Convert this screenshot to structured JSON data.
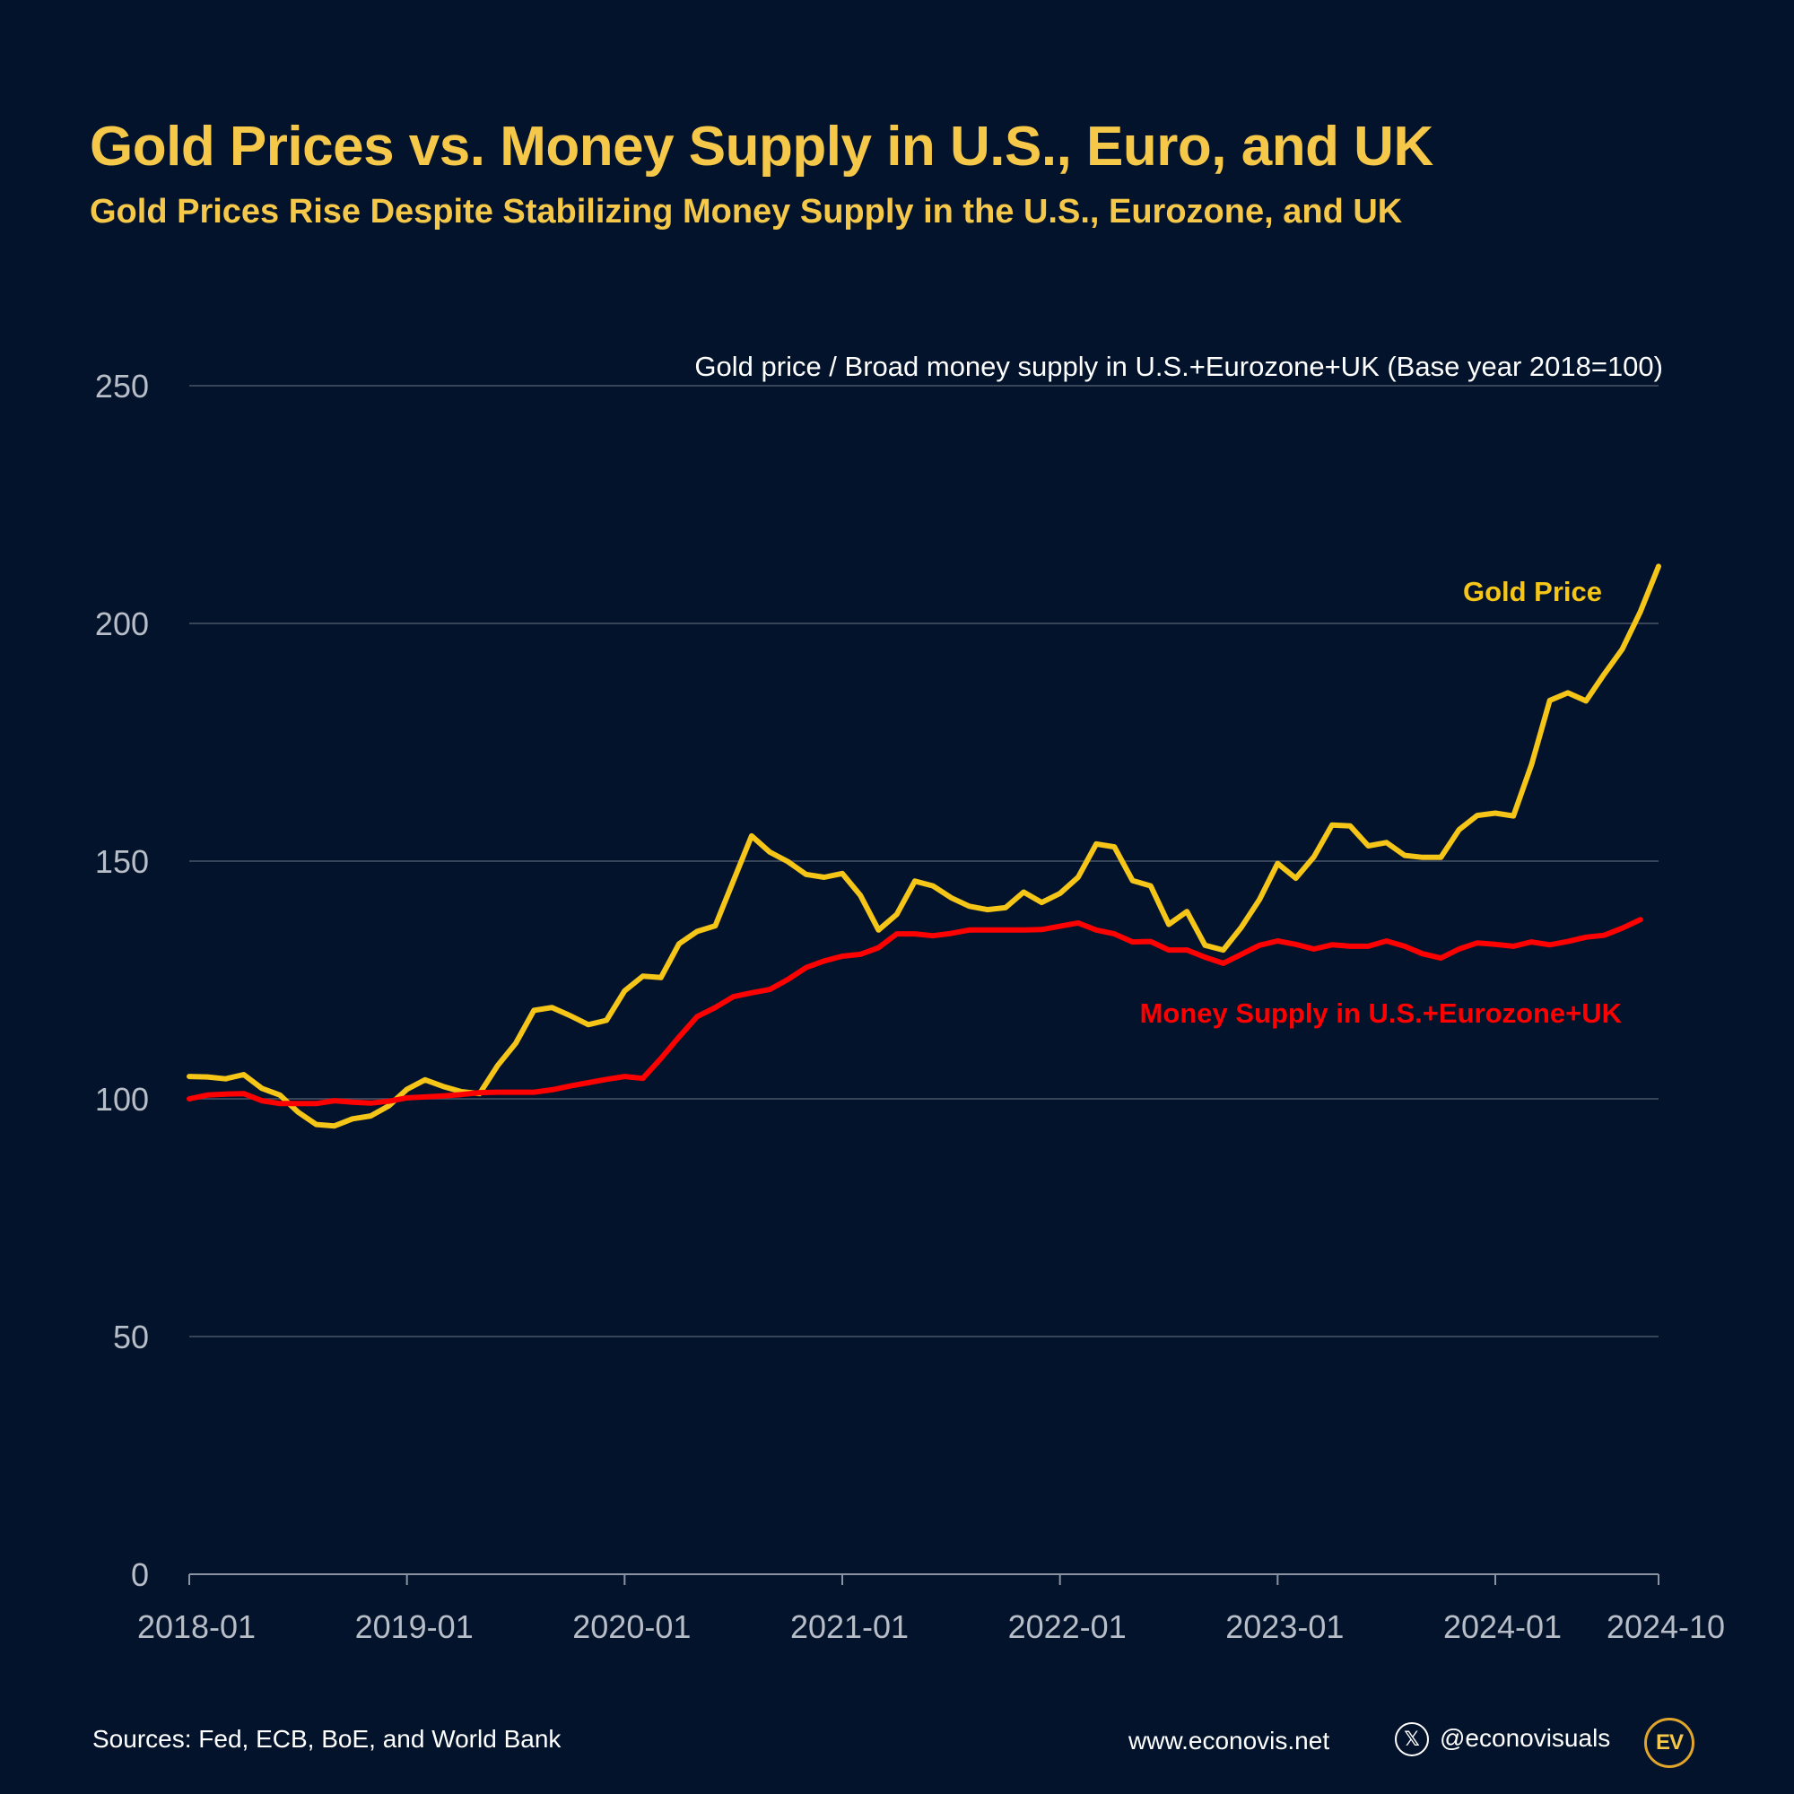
{
  "header": {
    "title": "Gold Prices vs. Money Supply in U.S., Euro, and UK",
    "subtitle": "Gold Prices Rise Despite Stabilizing Money Supply in the U.S., Eurozone, and UK"
  },
  "footer": {
    "sources": "Sources: Fed, ECB, BoE, and World Bank",
    "website": "www.econovis.net",
    "handle": "@econovisuals",
    "x_icon": "x-logo-icon",
    "logo_text": "EV"
  },
  "colors": {
    "background": "#03132b",
    "gold": "#f5c518",
    "money": "#ff0000",
    "title": "#f5c84a",
    "grid": "#4a5566",
    "tick_text": "#b8bec8"
  },
  "chart_data": {
    "type": "line",
    "title": "Gold price / Broad money supply in U.S.+Eurozone+UK (Base year 2018=100)",
    "xlabel": "",
    "ylabel": "",
    "ylim": [
      0,
      250
    ],
    "yticks": [
      0,
      50,
      100,
      150,
      200,
      250
    ],
    "xlim": [
      0,
      81
    ],
    "xticks": [
      {
        "pos": 0,
        "label": "2018-01"
      },
      {
        "pos": 12,
        "label": "2019-01"
      },
      {
        "pos": 24,
        "label": "2020-01"
      },
      {
        "pos": 36,
        "label": "2021-01"
      },
      {
        "pos": 48,
        "label": "2022-01"
      },
      {
        "pos": 60,
        "label": "2023-01"
      },
      {
        "pos": 72,
        "label": "2024-01"
      },
      {
        "pos": 81,
        "label": "2024-10"
      }
    ],
    "grid": true,
    "series": [
      {
        "name": "Gold Price",
        "label_anchor": 81,
        "values": [
          104.7,
          104.6,
          104.2,
          105.1,
          102.2,
          100.8,
          97.2,
          94.6,
          94.3,
          95.8,
          96.4,
          98.5,
          102.0,
          104.0,
          102.6,
          101.5,
          101.1,
          107.0,
          111.7,
          118.6,
          119.2,
          117.5,
          115.6,
          116.5,
          122.7,
          125.8,
          125.5,
          132.6,
          135.2,
          136.4,
          145.9,
          155.3,
          151.9,
          149.9,
          147.2,
          146.6,
          147.4,
          142.8,
          135.5,
          138.8,
          145.8,
          144.8,
          142.3,
          140.5,
          139.8,
          140.2,
          143.5,
          141.3,
          143.2,
          146.6,
          153.6,
          153.0,
          145.9,
          144.8,
          136.7,
          139.4,
          132.3,
          131.3,
          136.1,
          141.9,
          149.5,
          146.4,
          150.9,
          157.6,
          157.4,
          153.2,
          153.9,
          151.2,
          150.8,
          150.8,
          156.6,
          159.6,
          160.1,
          159.5,
          170.3,
          183.8,
          185.4,
          183.7,
          189.3,
          194.6,
          202.5,
          212.0
        ]
      },
      {
        "name": "Money Supply in U.S.+Eurozone+UK",
        "label_anchor": 65,
        "values": [
          100.0,
          100.8,
          101.0,
          101.1,
          99.6,
          99.0,
          99.0,
          99.0,
          99.6,
          99.3,
          99.1,
          99.5,
          100.2,
          100.4,
          100.6,
          100.9,
          101.3,
          101.4,
          101.4,
          101.4,
          101.9,
          102.7,
          103.4,
          104.1,
          104.7,
          104.3,
          108.5,
          113.0,
          117.3,
          119.2,
          121.5,
          122.3,
          123.0,
          125.1,
          127.6,
          129.0,
          130.0,
          130.4,
          131.8,
          134.7,
          134.7,
          134.3,
          134.8,
          135.5,
          135.5,
          135.5,
          135.5,
          135.6,
          136.3,
          137.0,
          135.5,
          134.7,
          133.0,
          133.1,
          131.3,
          131.3,
          129.8,
          128.5,
          130.4,
          132.3,
          133.2,
          132.5,
          131.5,
          132.4,
          132.1,
          132.1,
          133.2,
          132.1,
          130.5,
          129.6,
          131.5,
          132.8,
          132.5,
          132.1,
          133.0,
          132.4,
          133.1,
          134.0,
          134.4,
          135.9,
          137.7
        ]
      }
    ]
  }
}
